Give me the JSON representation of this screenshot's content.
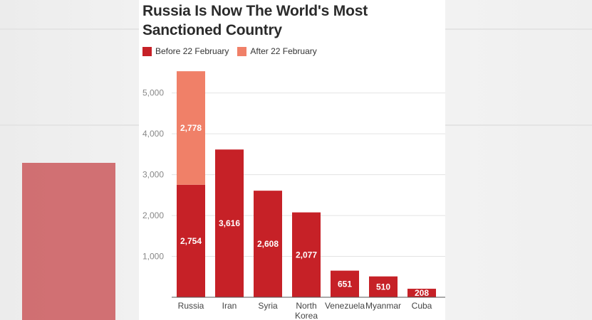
{
  "chart_data": {
    "type": "bar",
    "stacked": true,
    "title": "Russia Is Now The World's Most Sanctioned Country",
    "title_lines": [
      "Russia Is Now The World's Most",
      "Sanctioned Country"
    ],
    "categories": [
      [
        "Russia"
      ],
      [
        "Iran"
      ],
      [
        "Syria"
      ],
      [
        "North",
        "Korea"
      ],
      [
        "Venezuela"
      ],
      [
        "Myanmar"
      ],
      [
        "Cuba"
      ]
    ],
    "series": [
      {
        "name": "Before 22 February",
        "color": "#c62127",
        "values": [
          2754,
          3616,
          2608,
          2077,
          651,
          510,
          208
        ]
      },
      {
        "name": "After 22 February",
        "color": "#f08068",
        "values": [
          2778,
          0,
          0,
          0,
          0,
          0,
          0
        ]
      }
    ],
    "ylim": [
      0,
      5500
    ],
    "yticks": [
      1000,
      2000,
      3000,
      4000,
      5000
    ],
    "ytick_labels": [
      "1,000",
      "2,000",
      "3,000",
      "4,000",
      "5,000"
    ],
    "grid": true,
    "legend_position": "top-left",
    "xlabel": "",
    "ylabel": ""
  }
}
